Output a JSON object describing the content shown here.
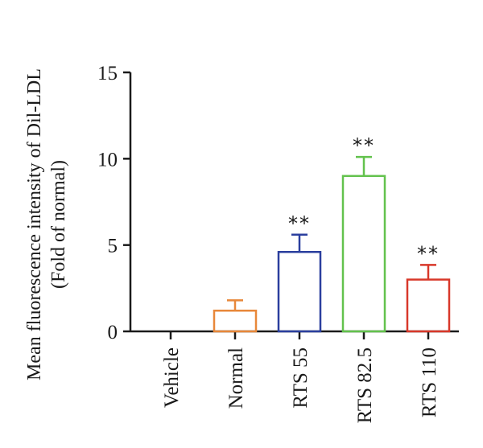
{
  "chart_data": {
    "type": "bar",
    "title": "",
    "xlabel": "",
    "ylabel": [
      "Mean fluorescence intensity of Dil-LDL",
      "(Fold of normal)"
    ],
    "ylim": [
      0,
      15
    ],
    "yticks": [
      0,
      5,
      10,
      15
    ],
    "categories": [
      "Vehicle",
      "Normal",
      "RTS 55",
      "RTS 82.5",
      "RTS 110"
    ],
    "values": [
      0,
      1.2,
      4.6,
      9.0,
      3.0
    ],
    "errors": [
      0,
      0.6,
      1.0,
      1.1,
      0.85
    ],
    "significance": [
      "",
      "",
      "**",
      "**",
      "**"
    ],
    "colors": [
      "#222222",
      "#e8883a",
      "#2b3f9e",
      "#63c24d",
      "#d8382a"
    ],
    "bar_style": "hollow outline with upper error bar",
    "grid": false,
    "legend": "none"
  }
}
